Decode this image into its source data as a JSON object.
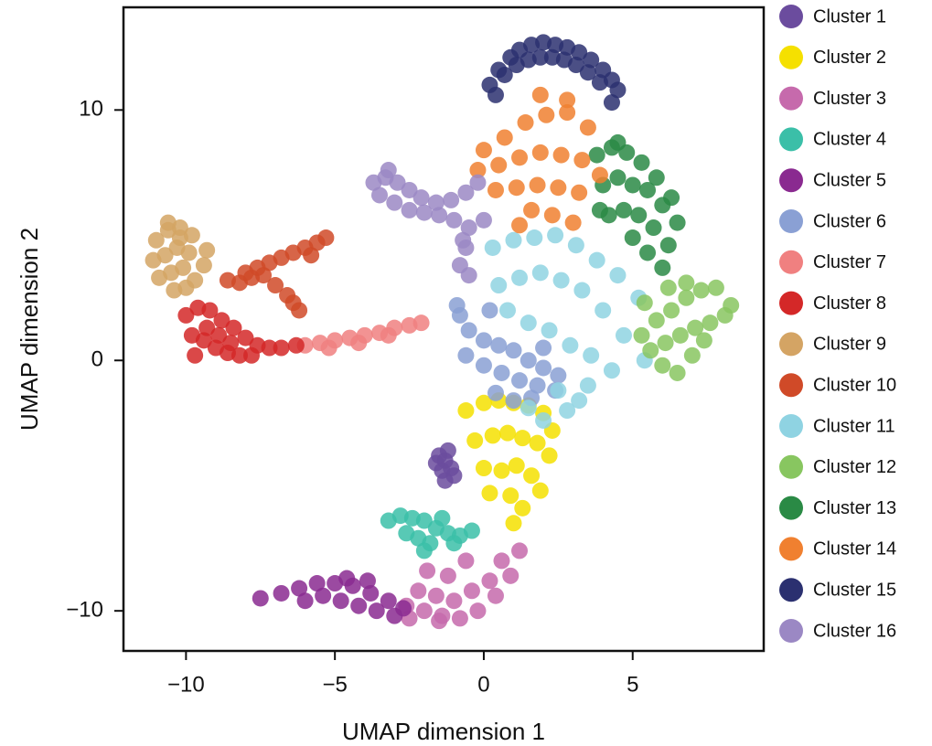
{
  "chart_data": {
    "type": "scatter",
    "x_label": "UMAP dimension 1",
    "y_label": "UMAP dimension 2",
    "xlim": [
      -12.1,
      9.4
    ],
    "ylim": [
      -11.6,
      14.1
    ],
    "xticks": [
      {
        "value": -10,
        "label": "−10"
      },
      {
        "value": -5,
        "label": "−5"
      },
      0,
      5
    ],
    "yticks": [
      {
        "value": -10,
        "label": "−10"
      },
      0,
      10
    ],
    "legend": "right",
    "series": [
      {
        "name": "Cluster 1",
        "color": "#6b4c9e",
        "x": [
          -1.5,
          -1.3,
          -1.1,
          -1.4,
          -1.2,
          -1.6,
          -1.0,
          -1.3
        ],
        "y": [
          -3.8,
          -4.0,
          -4.3,
          -4.4,
          -3.6,
          -4.1,
          -4.6,
          -4.8
        ]
      },
      {
        "name": "Cluster 2",
        "color": "#f5e000",
        "x": [
          -0.6,
          0,
          0.5,
          1,
          1.5,
          2,
          2.3,
          -0.3,
          0.3,
          0.8,
          1.3,
          1.8,
          2.2,
          0,
          0.6,
          1.1,
          1.6,
          0.9,
          1.3,
          1.0,
          0.2,
          1.9
        ],
        "y": [
          -2,
          -1.7,
          -1.6,
          -1.7,
          -1.8,
          -2.1,
          -2.8,
          -3.2,
          -3,
          -2.9,
          -3.1,
          -3.3,
          -3.8,
          -4.3,
          -4.4,
          -4.2,
          -4.6,
          -5.4,
          -5.9,
          -6.5,
          -5.3,
          -5.2
        ]
      },
      {
        "name": "Cluster 3",
        "color": "#c66aac",
        "x": [
          -2.6,
          -2,
          -1.4,
          -0.8,
          -0.2,
          0.4,
          0.9,
          1.2,
          -2.2,
          -1.6,
          -1,
          -0.4,
          0.2,
          -1.9,
          -1.2,
          -0.6,
          -2.5,
          -1.5,
          0.6
        ],
        "y": [
          -9.8,
          -10,
          -10.2,
          -10.3,
          -10,
          -9.4,
          -8.6,
          -7.6,
          -9.2,
          -9.4,
          -9.6,
          -9.2,
          -8.8,
          -8.4,
          -8.6,
          -8,
          -10.3,
          -10.4,
          -8.0
        ]
      },
      {
        "name": "Cluster 4",
        "color": "#3bbfa8",
        "x": [
          -3.2,
          -2.8,
          -2.4,
          -2.0,
          -1.6,
          -1.2,
          -0.8,
          -0.4,
          -2.6,
          -2.2,
          -1.8,
          -1.4,
          -1.0,
          -2.0
        ],
        "y": [
          -6.4,
          -6.2,
          -6.3,
          -6.4,
          -6.7,
          -6.9,
          -7.0,
          -6.8,
          -6.9,
          -7.1,
          -7.3,
          -6.3,
          -7.3,
          -7.6
        ]
      },
      {
        "name": "Cluster 5",
        "color": "#8a2a90",
        "x": [
          -7.5,
          -6.8,
          -6.2,
          -5.6,
          -5.0,
          -4.4,
          -3.8,
          -3.2,
          -2.7,
          -5.4,
          -4.8,
          -4.2,
          -3.6,
          -3.0,
          -4.6,
          -3.9,
          -6.0
        ],
        "y": [
          -9.5,
          -9.3,
          -9.1,
          -8.9,
          -8.9,
          -9.0,
          -9.3,
          -9.6,
          -9.9,
          -9.4,
          -9.6,
          -9.8,
          -10.0,
          -10.2,
          -8.7,
          -8.8,
          -9.6
        ]
      },
      {
        "name": "Cluster 6",
        "color": "#8aa0d4",
        "x": [
          -0.8,
          -0.5,
          0,
          0.5,
          1,
          1.5,
          2,
          2.5,
          -0.6,
          0,
          0.6,
          1.2,
          1.8,
          2.4,
          0.4,
          1.0,
          1.6,
          -0.9,
          2.0,
          0.2
        ],
        "y": [
          1.8,
          1.2,
          0.8,
          0.6,
          0.4,
          0.0,
          -0.3,
          -0.6,
          0.2,
          -0.2,
          -0.5,
          -0.8,
          -1.0,
          -1.2,
          -1.3,
          -1.6,
          -1.5,
          2.2,
          0.5,
          2.0
        ]
      },
      {
        "name": "Cluster 7",
        "color": "#f08080",
        "x": [
          -6.0,
          -5.5,
          -5.0,
          -4.5,
          -4.0,
          -3.5,
          -3.0,
          -2.5,
          -2.1,
          -5.2,
          -4.2,
          -3.2
        ],
        "y": [
          0.6,
          0.7,
          0.8,
          0.9,
          1.0,
          1.1,
          1.3,
          1.4,
          1.5,
          0.5,
          0.7,
          1.0
        ]
      },
      {
        "name": "Cluster 8",
        "color": "#d42828",
        "x": [
          -10.0,
          -9.6,
          -9.2,
          -8.8,
          -8.4,
          -8.0,
          -7.6,
          -7.2,
          -6.8,
          -6.3,
          -9.8,
          -9.4,
          -9.0,
          -8.6,
          -8.2,
          -7.8,
          -9.3,
          -8.9,
          -8.5,
          -9.7
        ],
        "y": [
          1.8,
          2.1,
          2.0,
          1.6,
          1.3,
          0.9,
          0.6,
          0.5,
          0.5,
          0.6,
          1.0,
          0.8,
          0.5,
          0.3,
          0.2,
          0.2,
          1.3,
          1.0,
          0.7,
          0.2
        ]
      },
      {
        "name": "Cluster 9",
        "color": "#d4a464",
        "x": [
          -11.0,
          -10.6,
          -10.2,
          -9.8,
          -9.3,
          -11.1,
          -10.7,
          -10.3,
          -9.9,
          -9.4,
          -10.9,
          -10.5,
          -10.1,
          -9.7,
          -10.4,
          -10.0,
          -10.6,
          -10.2
        ],
        "y": [
          4.8,
          5.2,
          5.3,
          5.0,
          4.4,
          4.0,
          4.2,
          4.5,
          4.3,
          3.8,
          3.3,
          3.5,
          3.7,
          3.2,
          2.8,
          2.9,
          5.5,
          4.9
        ]
      },
      {
        "name": "Cluster 10",
        "color": "#d04a28",
        "x": [
          -8.6,
          -8.2,
          -7.8,
          -7.4,
          -7.0,
          -6.6,
          -6.4,
          -6.2,
          -7.6,
          -7.2,
          -6.8,
          -6.4,
          -6.0,
          -5.6,
          -5.3,
          -5.8,
          -8.0
        ],
        "y": [
          3.2,
          3.1,
          3.3,
          3.4,
          3.0,
          2.6,
          2.3,
          2.0,
          3.7,
          3.9,
          4.1,
          4.3,
          4.5,
          4.7,
          4.9,
          4.2,
          3.5
        ]
      },
      {
        "name": "Cluster 11",
        "color": "#8fd3e2",
        "x": [
          0.3,
          1,
          1.7,
          2.4,
          3.1,
          3.8,
          4.5,
          5.2,
          0.5,
          1.2,
          1.9,
          2.6,
          3.3,
          4,
          4.7,
          5.4,
          1.5,
          2.2,
          2.9,
          3.6,
          4.3,
          2.5,
          3.2,
          1.5,
          2.0,
          2.8,
          3.5,
          0.8
        ],
        "y": [
          4.5,
          4.8,
          4.9,
          5.0,
          4.6,
          4.0,
          3.4,
          2.5,
          3.0,
          3.3,
          3.5,
          3.2,
          2.8,
          2.0,
          1.0,
          0.0,
          1.5,
          1.2,
          0.6,
          0.2,
          -0.4,
          -1.2,
          -1.6,
          -1.9,
          -2.4,
          -2.0,
          -1.0,
          2.0
        ]
      },
      {
        "name": "Cluster 12",
        "color": "#88c660",
        "x": [
          5.3,
          5.8,
          6.3,
          6.8,
          7.3,
          7.8,
          8.3,
          5.6,
          6.1,
          6.6,
          7.1,
          7.6,
          8.1,
          6.0,
          6.5,
          7.0,
          5.4,
          6.2,
          7.4,
          6.8
        ],
        "y": [
          1.0,
          1.6,
          2.0,
          2.5,
          2.8,
          2.9,
          2.2,
          0.4,
          0.7,
          1.0,
          1.3,
          1.5,
          1.8,
          -0.2,
          -0.5,
          0.2,
          2.3,
          2.9,
          0.8,
          3.1
        ]
      },
      {
        "name": "Cluster 13",
        "color": "#2a8a45",
        "x": [
          3.8,
          4.3,
          4.8,
          5.3,
          5.8,
          6.3,
          4.0,
          4.5,
          5.0,
          5.5,
          6.0,
          6.5,
          4.2,
          4.7,
          5.2,
          5.7,
          6.2,
          5.0,
          5.5,
          6.0,
          4.5,
          3.9
        ],
        "y": [
          8.2,
          8.5,
          8.3,
          7.9,
          7.3,
          6.5,
          7.0,
          7.3,
          7.0,
          6.8,
          6.2,
          5.5,
          5.8,
          6.0,
          5.8,
          5.3,
          4.6,
          4.9,
          4.3,
          3.7,
          8.7,
          6.0
        ]
      },
      {
        "name": "Cluster 14",
        "color": "#f08030",
        "x": [
          0,
          0.7,
          1.4,
          2.1,
          2.8,
          3.5,
          -0.2,
          0.5,
          1.2,
          1.9,
          2.6,
          3.3,
          3.9,
          0.4,
          1.1,
          1.8,
          2.5,
          3.2,
          1.6,
          2.3,
          3.0,
          1.2,
          2.8,
          1.9
        ],
        "y": [
          8.4,
          8.9,
          9.5,
          9.8,
          9.9,
          9.3,
          7.6,
          7.8,
          8.1,
          8.3,
          8.2,
          8.0,
          7.4,
          6.8,
          6.9,
          7.0,
          6.9,
          6.7,
          6.0,
          5.8,
          5.5,
          5.4,
          10.4,
          10.6
        ]
      },
      {
        "name": "Cluster 15",
        "color": "#2b3070",
        "x": [
          0.2,
          0.5,
          0.9,
          1.2,
          1.6,
          2.0,
          2.4,
          2.8,
          3.2,
          3.6,
          4.0,
          4.3,
          4.5,
          0.7,
          1.1,
          1.5,
          1.9,
          2.3,
          2.7,
          3.1,
          3.5,
          3.9,
          0.4,
          4.3
        ],
        "y": [
          11.0,
          11.6,
          12.1,
          12.4,
          12.6,
          12.7,
          12.6,
          12.5,
          12.3,
          12.0,
          11.6,
          11.2,
          10.8,
          11.4,
          11.8,
          12.0,
          12.1,
          12.1,
          12.0,
          11.8,
          11.5,
          11.1,
          10.6,
          10.3
        ]
      },
      {
        "name": "Cluster 16",
        "color": "#9b88c4",
        "x": [
          -3.7,
          -3.3,
          -2.9,
          -2.5,
          -2.1,
          -1.6,
          -1.1,
          -0.6,
          -0.2,
          -3.5,
          -3.0,
          -2.5,
          -2.0,
          -1.5,
          -1.0,
          -0.5,
          0.0,
          -0.6,
          -0.8,
          -0.5,
          -0.7,
          -3.2
        ],
        "y": [
          7.1,
          7.3,
          7.1,
          6.8,
          6.5,
          6.3,
          6.4,
          6.7,
          7.1,
          6.6,
          6.3,
          6.0,
          5.9,
          5.8,
          5.6,
          5.3,
          5.6,
          4.5,
          3.8,
          3.4,
          4.8,
          7.6
        ]
      }
    ]
  }
}
